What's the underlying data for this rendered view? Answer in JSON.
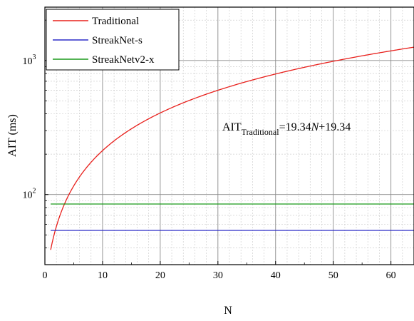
{
  "chart_data": {
    "type": "line",
    "xlabel": "N",
    "ylabel": "AIT (ms)",
    "xlim": [
      0,
      64
    ],
    "ylim": [
      30,
      2500
    ],
    "yscale": "log",
    "x_ticks": [
      0,
      10,
      20,
      30,
      40,
      50,
      60
    ],
    "y_ticks": [
      {
        "value": 100,
        "base": "10",
        "exp": "2"
      },
      {
        "value": 1000,
        "base": "10",
        "exp": "3"
      }
    ],
    "grid": true,
    "legend_position": "top-left",
    "series": [
      {
        "name": "Traditional",
        "color": "#e8201c",
        "formula": {
          "slope": 19.34,
          "intercept": 19.34
        },
        "x_range": [
          1,
          64
        ]
      },
      {
        "name": "StreakNet-s",
        "color": "#2b2bc8",
        "values_const": 54,
        "x_range": [
          1,
          64
        ]
      },
      {
        "name": "StreakNetv2-x",
        "color": "#1a9a1a",
        "values_const": 85,
        "x_range": [
          1,
          64
        ]
      }
    ],
    "annotation": {
      "prefix": "AIT",
      "subscript": "Traditional",
      "eq_part1": "=19.34",
      "var": "N",
      "eq_part2": "+19.34"
    }
  }
}
